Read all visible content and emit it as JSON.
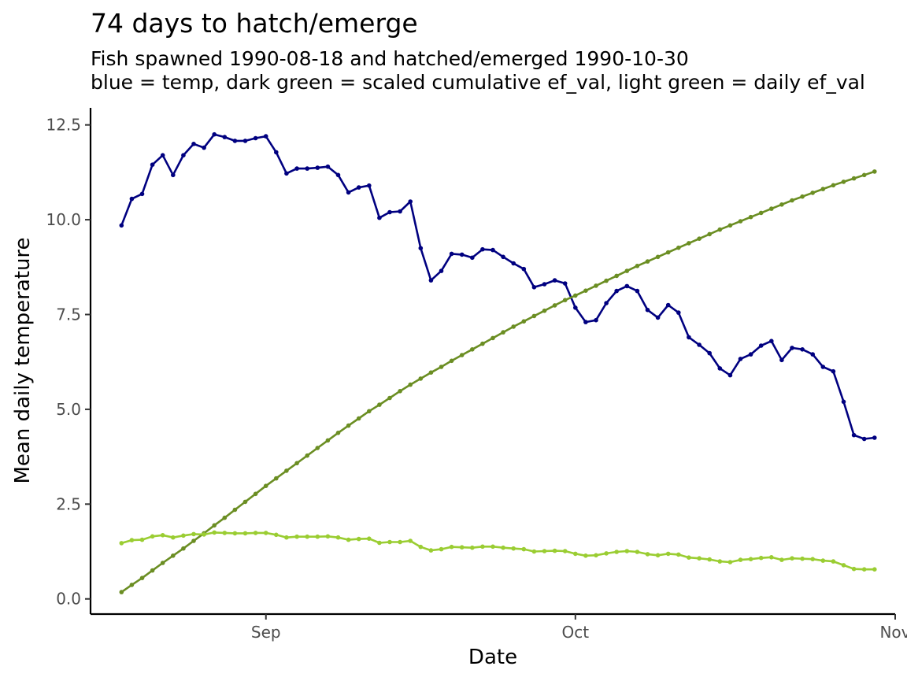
{
  "chart_data": {
    "type": "line",
    "title": "74 days to hatch/emerge",
    "subtitle": [
      "Fish spawned 1990-08-18 and hatched/emerged 1990-10-30",
      "blue = temp,  dark green = scaled cumulative ef_val, light green = daily ef_val"
    ],
    "xlabel": "Date",
    "ylabel": "Mean daily temperature",
    "x_start": "1990-08-18",
    "x_end": "1990-10-30",
    "xlim": [
      "1990-08-15",
      "1990-11-01"
    ],
    "ylim": [
      -0.4,
      12.95
    ],
    "x_ticks": [
      {
        "label": "Sep",
        "date": "1990-09-01"
      },
      {
        "label": "Oct",
        "date": "1990-10-01"
      },
      {
        "label": "Nov",
        "date": "1990-11-01"
      }
    ],
    "y_ticks": [
      {
        "label": "0.0",
        "value": 0
      },
      {
        "label": "2.5",
        "value": 2.5
      },
      {
        "label": "5.0",
        "value": 5
      },
      {
        "label": "7.5",
        "value": 7.5
      },
      {
        "label": "10.0",
        "value": 10
      },
      {
        "label": "12.5",
        "value": 12.5
      }
    ],
    "grid": false,
    "legend": "none",
    "series": [
      {
        "color": "#000080",
        "values": [
          9.85,
          10.55,
          10.68,
          11.45,
          11.7,
          11.18,
          11.7,
          12.0,
          11.9,
          12.25,
          12.18,
          12.08,
          12.08,
          12.15,
          12.2,
          11.78,
          11.22,
          11.35,
          11.35,
          11.37,
          11.4,
          11.18,
          10.72,
          10.85,
          10.9,
          10.05,
          10.2,
          10.22,
          10.48,
          9.25,
          8.4,
          8.65,
          9.1,
          9.08,
          9.0,
          9.22,
          9.2,
          9.02,
          8.85,
          8.7,
          8.22,
          8.3,
          8.4,
          8.32,
          7.68,
          7.3,
          7.35,
          7.8,
          8.12,
          8.25,
          8.12,
          7.62,
          7.42,
          7.75,
          7.55,
          6.9,
          6.7,
          6.48,
          6.08,
          5.9,
          6.33,
          6.45,
          6.68,
          6.8,
          6.3,
          6.62,
          6.58,
          6.45,
          6.12,
          6.0,
          5.2,
          4.32,
          4.22,
          4.25
        ]
      },
      {
        "color": "#6b8e23",
        "values": [
          0.18,
          0.37,
          0.55,
          0.75,
          0.95,
          1.14,
          1.33,
          1.53,
          1.73,
          1.94,
          2.14,
          2.35,
          2.56,
          2.77,
          2.98,
          3.18,
          3.38,
          3.58,
          3.78,
          3.98,
          4.18,
          4.38,
          4.57,
          4.76,
          4.95,
          5.12,
          5.3,
          5.48,
          5.65,
          5.81,
          5.97,
          6.12,
          6.28,
          6.43,
          6.58,
          6.73,
          6.88,
          7.03,
          7.18,
          7.32,
          7.46,
          7.6,
          7.74,
          7.88,
          8.0,
          8.13,
          8.26,
          8.39,
          8.52,
          8.65,
          8.78,
          8.9,
          9.02,
          9.14,
          9.26,
          9.38,
          9.5,
          9.62,
          9.74,
          9.85,
          9.96,
          10.07,
          10.18,
          10.29,
          10.4,
          10.51,
          10.61,
          10.71,
          10.81,
          10.91,
          11.0,
          11.09,
          11.18,
          11.27
        ]
      },
      {
        "color": "#9acd32",
        "values": [
          1.47,
          1.55,
          1.56,
          1.65,
          1.68,
          1.62,
          1.67,
          1.71,
          1.7,
          1.75,
          1.74,
          1.73,
          1.73,
          1.74,
          1.74,
          1.69,
          1.62,
          1.64,
          1.64,
          1.64,
          1.65,
          1.62,
          1.56,
          1.58,
          1.59,
          1.48,
          1.5,
          1.5,
          1.53,
          1.37,
          1.28,
          1.31,
          1.37,
          1.36,
          1.35,
          1.38,
          1.38,
          1.35,
          1.33,
          1.31,
          1.25,
          1.26,
          1.27,
          1.26,
          1.19,
          1.14,
          1.15,
          1.2,
          1.24,
          1.26,
          1.24,
          1.18,
          1.15,
          1.19,
          1.17,
          1.09,
          1.07,
          1.04,
          0.99,
          0.97,
          1.03,
          1.05,
          1.08,
          1.1,
          1.03,
          1.07,
          1.06,
          1.05,
          1.01,
          0.99,
          0.89,
          0.79,
          0.78,
          0.78
        ]
      }
    ]
  }
}
